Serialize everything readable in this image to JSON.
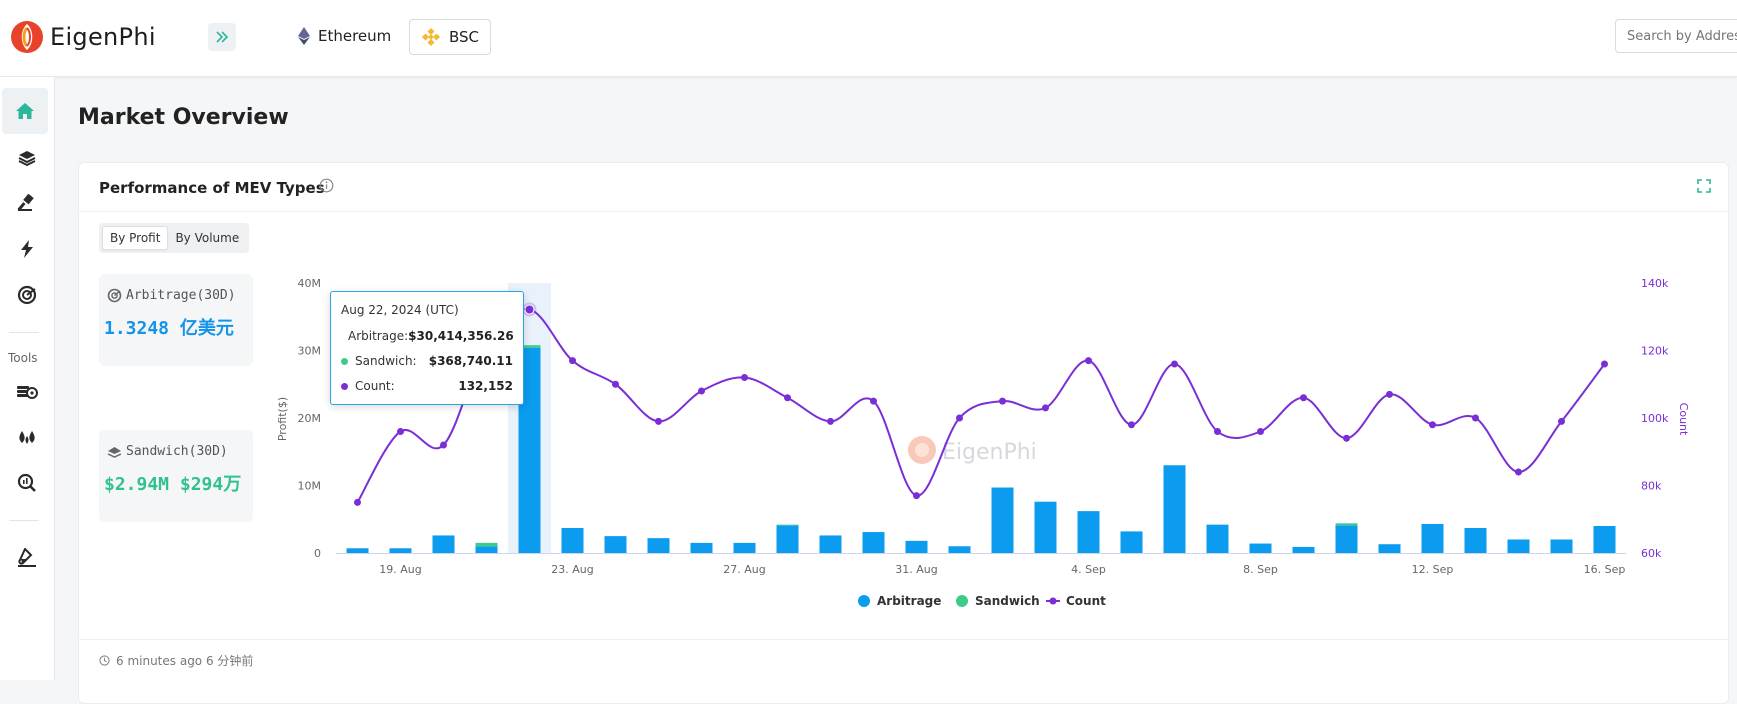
{
  "header": {
    "logo_text": "EigenPhi",
    "chains": [
      {
        "label": "Ethereum",
        "active": false
      },
      {
        "label": "BSC",
        "active": true
      }
    ],
    "search_placeholder": "Search by Address"
  },
  "sidebar": {
    "tools_label": "Tools",
    "items": [
      {
        "name": "home-icon",
        "active": true
      },
      {
        "name": "layers-icon",
        "active": false
      },
      {
        "name": "hammer-icon",
        "active": false
      },
      {
        "name": "lightning-icon",
        "active": false
      },
      {
        "name": "target-icon",
        "active": false
      },
      {
        "name": "coins-icon",
        "active": false
      },
      {
        "name": "drops-icon",
        "active": false
      },
      {
        "name": "search-chart-icon",
        "active": false
      },
      {
        "name": "test-tube-icon",
        "active": false
      }
    ]
  },
  "page": {
    "title": "Market Overview"
  },
  "card": {
    "title": "Performance of MEV Types",
    "toggle": [
      "By Profit",
      "By Volume"
    ],
    "active_toggle": "By Profit",
    "stats": [
      {
        "label": "Arbitrage(30D)",
        "value": "1.3248 亿美元",
        "color": "#1593e8"
      },
      {
        "label": "Sandwich(30D)",
        "value": "$2.94M $294万",
        "color": "#2fc28f"
      }
    ],
    "updated": "6 minutes ago  6 分钟前"
  },
  "tooltip": {
    "title": "Aug 22, 2024 (UTC)",
    "rows": [
      {
        "name": "Arbitrage:",
        "value": "$30,414,356.26",
        "color": "#1593e8"
      },
      {
        "name": "Sandwich:",
        "value": "$368,740.11",
        "color": "#3ecb87"
      },
      {
        "name": "Count:",
        "value": "132,152",
        "color": "#7a2ed6"
      }
    ]
  },
  "chart_data": {
    "type": "bar",
    "xlabel": "",
    "ylabel": "Profit($)",
    "y2label": "Count",
    "ylim": [
      0,
      40000000
    ],
    "y2lim": [
      60000,
      140000
    ],
    "yticks": [
      "0",
      "10M",
      "20M",
      "30M",
      "40M"
    ],
    "y2ticks": [
      "60k",
      "80k",
      "100k",
      "120k",
      "140k"
    ],
    "x_tick_labels": [
      {
        "index": 1,
        "label": "19. Aug"
      },
      {
        "index": 5,
        "label": "23. Aug"
      },
      {
        "index": 9,
        "label": "27. Aug"
      },
      {
        "index": 13,
        "label": "31. Aug"
      },
      {
        "index": 17,
        "label": "4. Sep"
      },
      {
        "index": 21,
        "label": "8. Sep"
      },
      {
        "index": 25,
        "label": "12. Sep"
      },
      {
        "index": 29,
        "label": "16. Sep"
      }
    ],
    "categories": [
      "2024-08-18",
      "2024-08-19",
      "2024-08-20",
      "2024-08-21",
      "2024-08-22",
      "2024-08-23",
      "2024-08-24",
      "2024-08-25",
      "2024-08-26",
      "2024-08-27",
      "2024-08-28",
      "2024-08-29",
      "2024-08-30",
      "2024-08-31",
      "2024-09-01",
      "2024-09-02",
      "2024-09-03",
      "2024-09-04",
      "2024-09-05",
      "2024-09-06",
      "2024-09-07",
      "2024-09-08",
      "2024-09-09",
      "2024-09-10",
      "2024-09-11",
      "2024-09-12",
      "2024-09-13",
      "2024-09-14",
      "2024-09-15",
      "2024-09-16"
    ],
    "series": [
      {
        "name": "Arbitrage",
        "kind": "bar",
        "color": "#0b9bef",
        "values": [
          700000,
          700000,
          2600000,
          1000000,
          30414356,
          3700000,
          2500000,
          2200000,
          1500000,
          1500000,
          4100000,
          2600000,
          3100000,
          1800000,
          1000000,
          9700000,
          7600000,
          6200000,
          3200000,
          13000000,
          4200000,
          1400000,
          900000,
          4100000,
          1300000,
          4300000,
          3700000,
          2000000,
          2000000,
          4000000
        ]
      },
      {
        "name": "Sandwich",
        "kind": "bar",
        "color": "#3ecb87",
        "values": [
          0,
          0,
          0,
          500000,
          368740,
          0,
          0,
          0,
          0,
          0,
          100000,
          0,
          0,
          0,
          0,
          0,
          0,
          0,
          0,
          0,
          0,
          0,
          0,
          300000,
          0,
          0,
          0,
          0,
          0,
          0
        ]
      },
      {
        "name": "Count",
        "kind": "line",
        "color": "#7a2ed6",
        "values": [
          75000,
          96000,
          92000,
          122000,
          132152,
          117000,
          110000,
          99000,
          108000,
          112000,
          106000,
          99000,
          105000,
          77000,
          100000,
          105000,
          103000,
          117000,
          98000,
          116000,
          96000,
          96000,
          106000,
          94000,
          107000,
          98000,
          100000,
          84000,
          99000,
          116000
        ]
      }
    ],
    "highlight_index": 4,
    "legend": [
      "Arbitrage",
      "Sandwich",
      "Count"
    ],
    "legend_position": "bottom",
    "watermark": "EigenPhi"
  }
}
